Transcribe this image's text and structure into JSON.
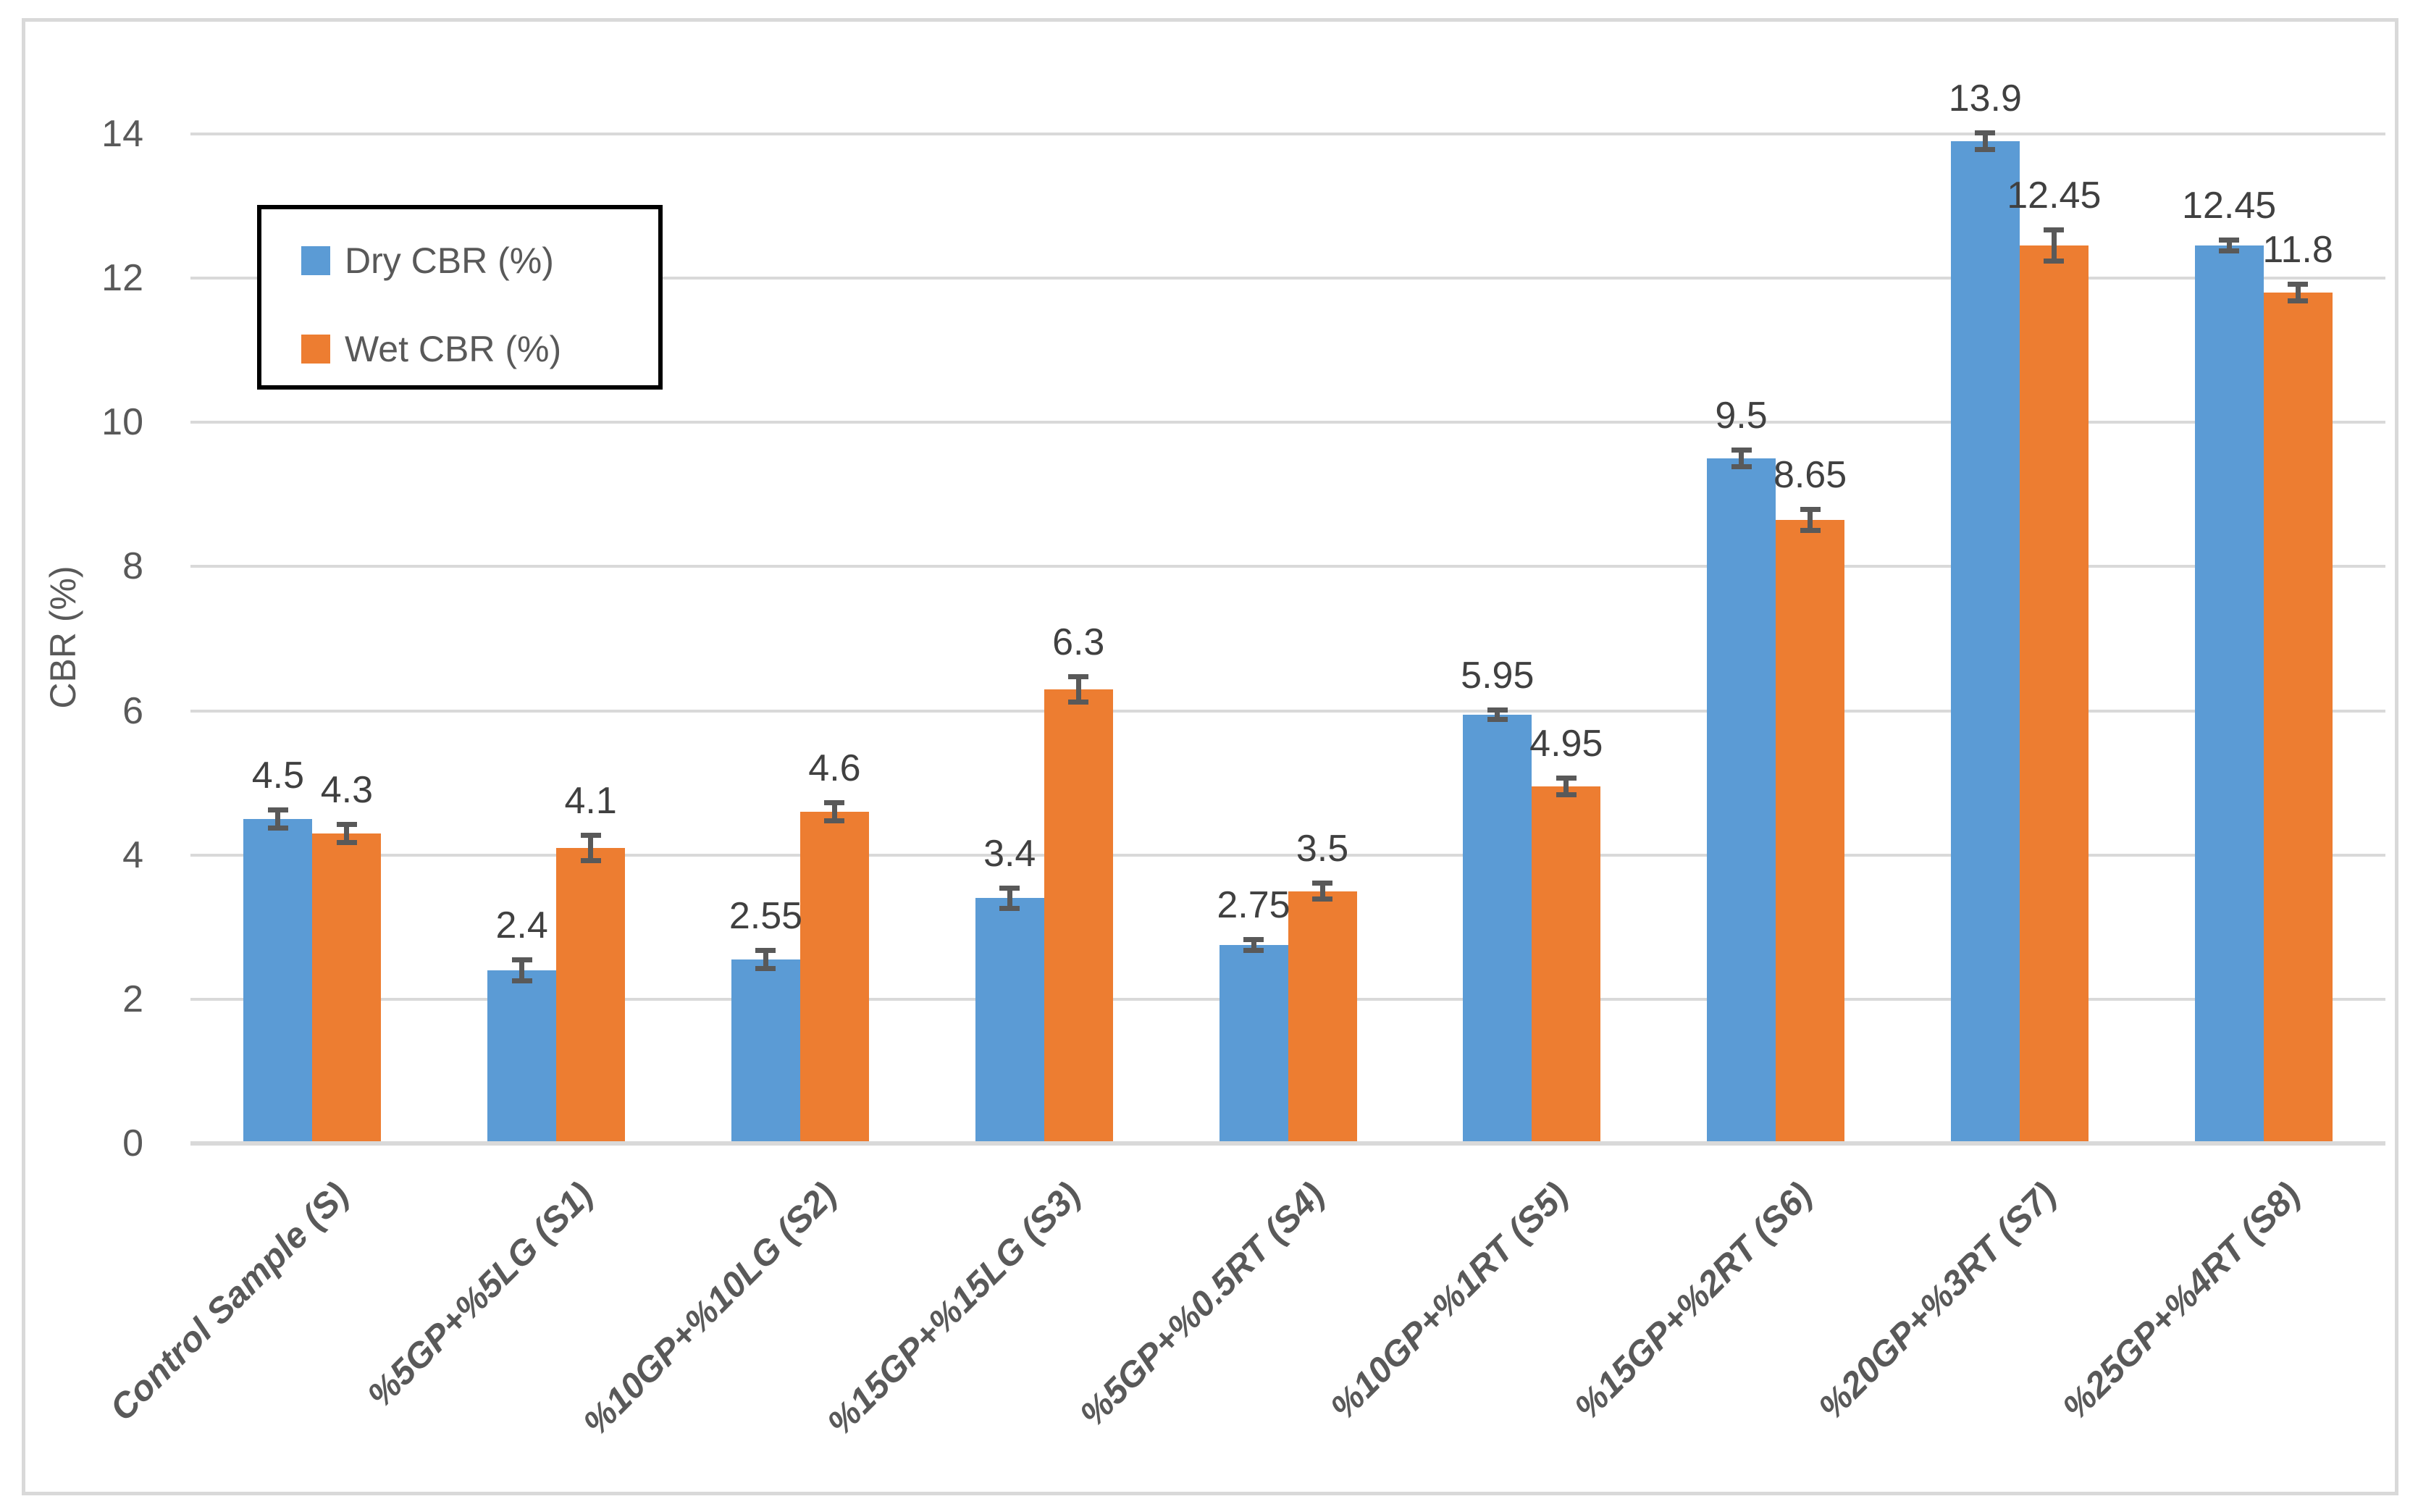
{
  "chart_data": {
    "type": "bar",
    "title": "",
    "categories": [
      "Control Sample (S)",
      "%5GP+%5LG (S1)",
      "%10GP+%10LG (S2)",
      "%15GP+%15LG (S3)",
      "%5GP+%0.5RT (S4)",
      "%10GP+%1RT (S5)",
      "%15GP+%2RT (S6)",
      "%20GP+%3RT (S7)",
      "%25GP+%4RT (S8)"
    ],
    "series": [
      {
        "name": "Dry CBR (%)",
        "color": "#5B9BD5",
        "values": [
          4.5,
          2.4,
          2.55,
          3.4,
          2.75,
          5.95,
          9.5,
          13.9,
          12.45
        ],
        "errors": [
          0.13,
          0.15,
          0.13,
          0.15,
          0.08,
          0.07,
          0.12,
          0.12,
          0.08
        ]
      },
      {
        "name": "Wet CBR (%)",
        "color": "#ED7D31",
        "values": [
          4.3,
          4.1,
          4.6,
          6.3,
          3.5,
          4.95,
          8.65,
          12.45,
          11.8
        ],
        "errors": [
          0.13,
          0.18,
          0.13,
          0.18,
          0.12,
          0.12,
          0.15,
          0.22,
          0.12
        ]
      }
    ],
    "ylabel": "CBR (%)",
    "ylim": [
      0,
      14
    ],
    "ytick_step": 2,
    "yticks": [
      "0",
      "2",
      "4",
      "6",
      "8",
      "10",
      "12",
      "14"
    ],
    "grid": true,
    "legend_position": "top-left",
    "colors": {
      "gridline": "#d9d9d9",
      "axis_text": "#595959",
      "data_label": "#404040",
      "error_bar": "#595959",
      "legend_border": "#000000",
      "frame_border": "#d9d9d9"
    }
  }
}
